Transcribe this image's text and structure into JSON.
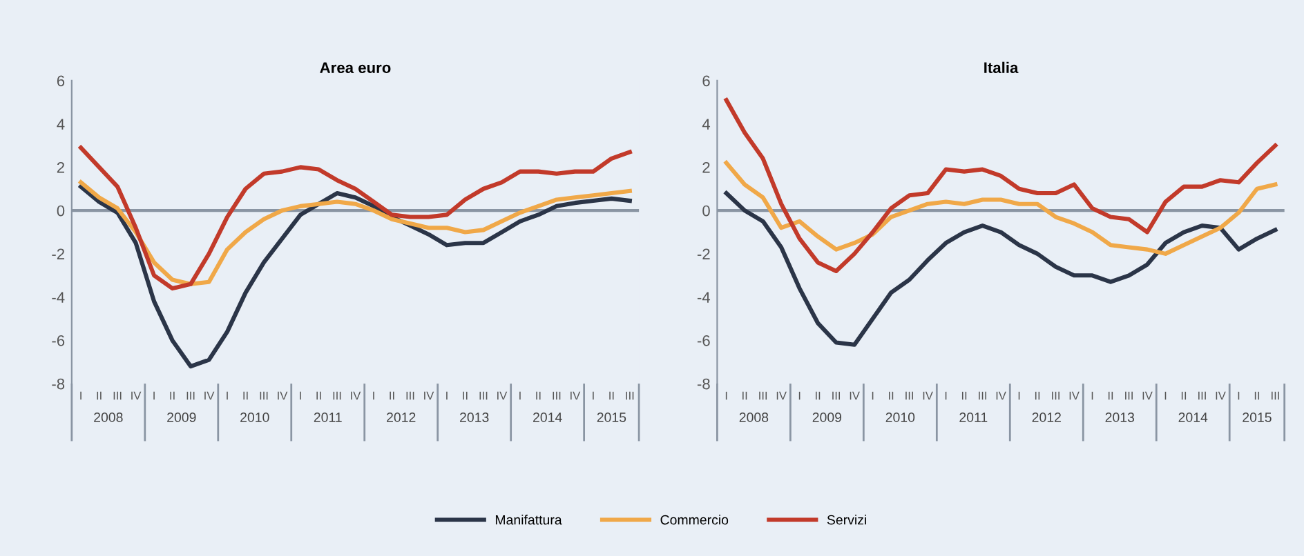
{
  "chart_data": [
    {
      "type": "line",
      "title": "Area euro",
      "legend": "bottom",
      "categories": [
        "I",
        "II",
        "III",
        "IV",
        "I",
        "II",
        "III",
        "IV",
        "I",
        "II",
        "III",
        "IV",
        "I",
        "II",
        "III",
        "IV",
        "I",
        "II",
        "III",
        "IV",
        "I",
        "II",
        "III",
        "IV",
        "I",
        "II",
        "III",
        "IV",
        "I",
        "II",
        "III"
      ],
      "annotations": [
        "2008",
        "2009",
        "2010",
        "2011",
        "2012",
        "2013",
        "2014",
        "2015"
      ],
      "ylim": [
        -8,
        6
      ],
      "yticks": [
        -8,
        -6,
        -4,
        -2,
        0,
        2,
        4,
        6
      ],
      "ref_lines": [
        {
          "axis": "y",
          "value": 0,
          "color": "#8a95a3"
        }
      ],
      "series": [
        {
          "name": "Manifattura",
          "color": "#2b3548",
          "values": [
            1.1,
            0.4,
            -0.1,
            -1.5,
            -4.2,
            -6.0,
            -7.2,
            -6.9,
            -5.6,
            -3.8,
            -2.4,
            -1.3,
            -0.2,
            0.3,
            0.8,
            0.6,
            0.2,
            -0.3,
            -0.7,
            -1.1,
            -1.6,
            -1.5,
            -1.5,
            -1.0,
            -0.5,
            -0.2,
            0.2,
            0.35,
            0.45,
            0.55,
            0.45
          ]
        },
        {
          "name": "Commercio",
          "color": "#f0a848",
          "values": [
            1.3,
            0.6,
            0.1,
            -1.0,
            -2.4,
            -3.2,
            -3.4,
            -3.3,
            -1.8,
            -1.0,
            -0.4,
            0.0,
            0.2,
            0.3,
            0.4,
            0.3,
            0.0,
            -0.4,
            -0.6,
            -0.8,
            -0.8,
            -1.0,
            -0.9,
            -0.5,
            -0.1,
            0.2,
            0.5,
            0.6,
            0.7,
            0.8,
            0.9
          ]
        },
        {
          "name": "Servizi",
          "color": "#c23a2a",
          "values": [
            2.9,
            2.0,
            1.1,
            -0.8,
            -3.0,
            -3.6,
            -3.4,
            -2.0,
            -0.3,
            1.0,
            1.7,
            1.8,
            2.0,
            1.9,
            1.4,
            1.0,
            0.4,
            -0.2,
            -0.3,
            -0.3,
            -0.2,
            0.5,
            1.0,
            1.3,
            1.8,
            1.8,
            1.7,
            1.8,
            1.8,
            2.4,
            2.7
          ]
        }
      ]
    },
    {
      "type": "line",
      "title": "Italia",
      "categories": [
        "I",
        "II",
        "III",
        "IV",
        "I",
        "II",
        "III",
        "IV",
        "I",
        "II",
        "III",
        "IV",
        "I",
        "II",
        "III",
        "IV",
        "I",
        "II",
        "III",
        "IV",
        "I",
        "II",
        "III",
        "IV",
        "I",
        "II",
        "III",
        "IV",
        "I",
        "II",
        "III"
      ],
      "annotations": [
        "2008",
        "2009",
        "2010",
        "2011",
        "2012",
        "2013",
        "2014",
        "2015"
      ],
      "ylim": [
        -8,
        6
      ],
      "yticks": [
        -8,
        -6,
        -4,
        -2,
        0,
        2,
        4,
        6
      ],
      "ref_lines": [
        {
          "axis": "y",
          "value": 0,
          "color": "#8a95a3"
        }
      ],
      "series": [
        {
          "color": "#2b3548",
          "values": [
            0.8,
            0.0,
            -0.5,
            -1.7,
            -3.6,
            -5.2,
            -6.1,
            -6.2,
            -5.0,
            -3.8,
            -3.2,
            -2.3,
            -1.5,
            -1.0,
            -0.7,
            -1.0,
            -1.6,
            -2.0,
            -2.6,
            -3.0,
            -3.0,
            -3.3,
            -3.0,
            -2.5,
            -1.5,
            -1.0,
            -0.7,
            -0.8,
            -1.8,
            -1.3,
            -0.9
          ]
        },
        {
          "color": "#f0a848",
          "values": [
            2.2,
            1.2,
            0.6,
            -0.8,
            -0.5,
            -1.2,
            -1.8,
            -1.5,
            -1.1,
            -0.3,
            0.0,
            0.3,
            0.4,
            0.3,
            0.5,
            0.5,
            0.3,
            0.3,
            -0.3,
            -0.6,
            -1.0,
            -1.6,
            -1.7,
            -1.8,
            -2.0,
            -1.6,
            -1.2,
            -0.8,
            -0.1,
            1.0,
            1.2
          ]
        },
        {
          "color": "#c23a2a",
          "values": [
            5.1,
            3.6,
            2.4,
            0.3,
            -1.3,
            -2.4,
            -2.8,
            -2.0,
            -1.0,
            0.1,
            0.7,
            0.8,
            1.9,
            1.8,
            1.9,
            1.6,
            1.0,
            0.8,
            0.8,
            1.2,
            0.1,
            -0.3,
            -0.4,
            -1.0,
            0.4,
            1.1,
            1.1,
            1.4,
            1.3,
            2.2,
            3.0
          ]
        }
      ]
    }
  ]
}
